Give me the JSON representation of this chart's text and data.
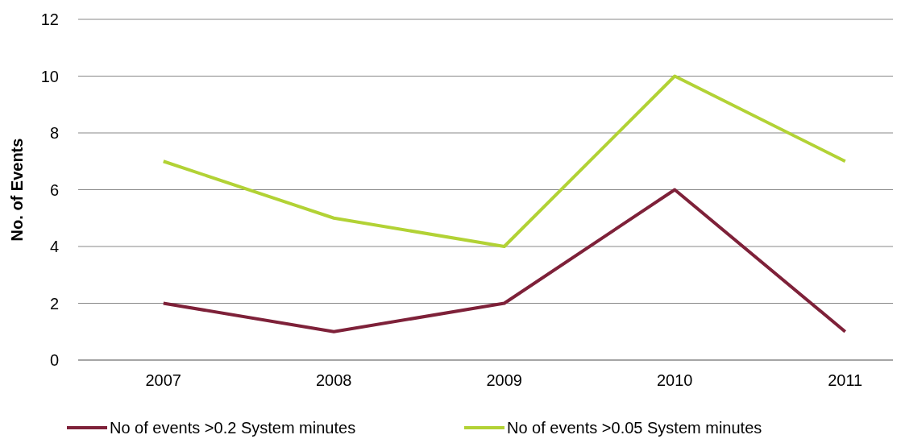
{
  "chart_data": {
    "type": "line",
    "ylabel": "No. of Events",
    "categories": [
      "2007",
      "2008",
      "2009",
      "2010",
      "2011"
    ],
    "series": [
      {
        "name": "No of events >0.2 System minutes",
        "color": "#7e2139",
        "values": [
          2,
          1,
          2,
          6,
          1
        ]
      },
      {
        "name": "No of events >0.05 System minutes",
        "color": "#b2d235",
        "values": [
          7,
          5,
          4,
          10,
          7
        ]
      }
    ],
    "ylim": [
      0,
      12
    ],
    "yticks": [
      0,
      2,
      4,
      6,
      8,
      10,
      12
    ],
    "grid": "y",
    "legend": "bottom",
    "marker": "none",
    "line_style": "solid"
  }
}
